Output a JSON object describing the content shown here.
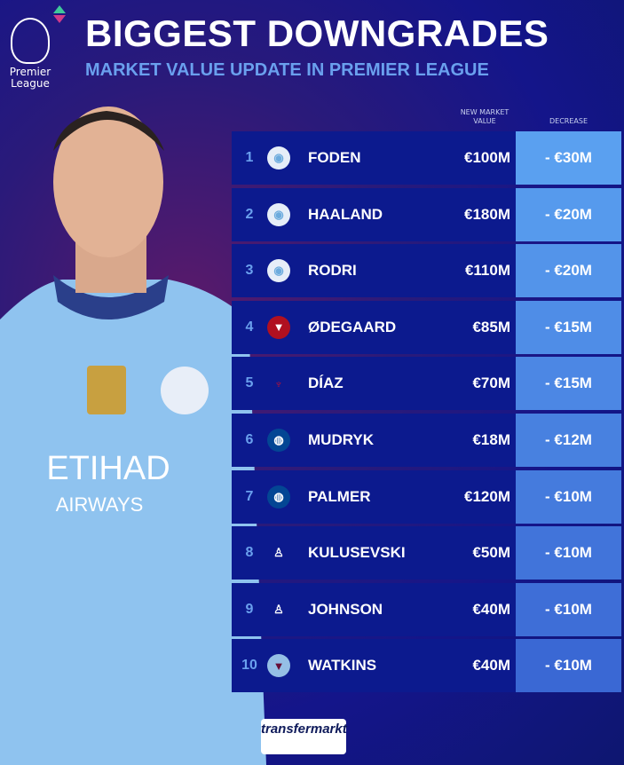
{
  "header": {
    "logo_text": "Premier League",
    "title": "BIGGEST DOWNGRADES",
    "subtitle": "MARKET VALUE UPDATE IN PREMIER LEAGUE"
  },
  "columns": {
    "market_value": "NEW MARKET VALUE",
    "decrease": "DECREASE"
  },
  "colors": {
    "row_bg": "#0c1a8e",
    "decrease_top": "#5aa0f0",
    "decrease_bottom": "#3a68d4",
    "rank": "#6aa0ee"
  },
  "rows": [
    {
      "rank": "1",
      "club": "Manchester City",
      "name": "FODEN",
      "value": "€100M",
      "decrease": "- €30M"
    },
    {
      "rank": "2",
      "club": "Manchester City",
      "name": "HAALAND",
      "value": "€180M",
      "decrease": "- €20M"
    },
    {
      "rank": "3",
      "club": "Manchester City",
      "name": "RODRI",
      "value": "€110M",
      "decrease": "- €20M"
    },
    {
      "rank": "4",
      "club": "Arsenal",
      "name": "ØDEGAARD",
      "value": "€85M",
      "decrease": "- €15M"
    },
    {
      "rank": "5",
      "club": "Liverpool",
      "name": "DÍAZ",
      "value": "€70M",
      "decrease": "- €15M"
    },
    {
      "rank": "6",
      "club": "Chelsea",
      "name": "MUDRYK",
      "value": "€18M",
      "decrease": "- €12M"
    },
    {
      "rank": "7",
      "club": "Chelsea",
      "name": "PALMER",
      "value": "€120M",
      "decrease": "- €10M"
    },
    {
      "rank": "8",
      "club": "Tottenham",
      "name": "KULUSEVSKI",
      "value": "€50M",
      "decrease": "- €10M"
    },
    {
      "rank": "9",
      "club": "Tottenham",
      "name": "JOHNSON",
      "value": "€40M",
      "decrease": "- €10M"
    },
    {
      "rank": "10",
      "club": "Aston Villa",
      "name": "WATKINS",
      "value": "€40M",
      "decrease": "- €10M"
    }
  ],
  "footer": {
    "brand": "transfermarkt"
  }
}
